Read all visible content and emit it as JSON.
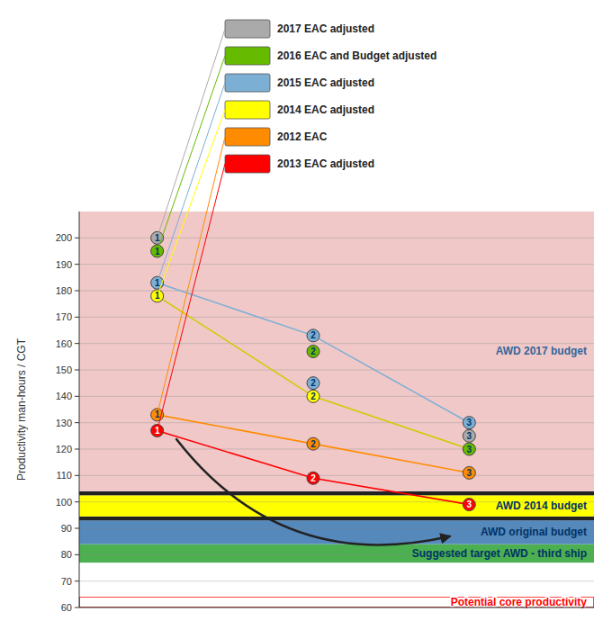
{
  "chart_data": {
    "type": "scatter",
    "ylabel": "Productivity man-hours / CGT",
    "xlim": [
      0.5,
      3.8
    ],
    "ylim": [
      60,
      210
    ],
    "yticks": [
      60,
      70,
      80,
      90,
      100,
      110,
      120,
      130,
      140,
      150,
      160,
      170,
      180,
      190,
      200
    ],
    "grid": true,
    "legend": "top",
    "tick_labels": "y",
    "marker": "circle",
    "series": [
      {
        "name": "2017 EAC adjusted",
        "color": "#aaaaaa",
        "x": [
          1,
          3
        ],
        "values": [
          200,
          125
        ]
      },
      {
        "name": "2016 EAC and Budget adjusted",
        "color": "#66BB00",
        "x": [
          1,
          2,
          3
        ],
        "values": [
          195,
          157,
          120
        ]
      },
      {
        "name": "2015 EAC adjusted",
        "color": "#7BAFD4",
        "x": [
          1,
          2,
          2,
          3
        ],
        "values": [
          183,
          163,
          145,
          130
        ]
      },
      {
        "name": "2014 EAC adjusted",
        "color": "#FFFF00",
        "x": [
          1,
          2
        ],
        "values": [
          178,
          140
        ]
      },
      {
        "name": "2012 EAC",
        "color": "#FF8C00",
        "x": [
          1,
          2,
          3
        ],
        "values": [
          133,
          122,
          111
        ]
      },
      {
        "name": "2013 EAC adjusted",
        "color": "#FF0000",
        "x": [
          1,
          2,
          3
        ],
        "values": [
          127,
          109,
          99
        ]
      },
      {
        "type": "line",
        "color": "#7BAFD4",
        "x": [
          1,
          2,
          3
        ],
        "values": [
          183,
          163,
          130
        ]
      },
      {
        "type": "line",
        "color": "#cccc00",
        "x": [
          1,
          2,
          3
        ],
        "values": [
          178,
          140,
          120
        ]
      },
      {
        "type": "line",
        "color": "#FF8C00",
        "x": [
          1,
          2,
          3
        ],
        "values": [
          133,
          122,
          111
        ]
      },
      {
        "type": "line",
        "color": "#FF0000",
        "x": [
          1,
          2,
          3
        ],
        "values": [
          127,
          109,
          99
        ]
      }
    ],
    "bands": [
      {
        "y": 60,
        "height": 4,
        "color": "#ffffff",
        "edge_color": "#ff0000",
        "label": "Potential core productivity",
        "label_color": "#ff0000"
      },
      {
        "y": 64,
        "height": 13,
        "color": "#ffffff"
      },
      {
        "y": 77,
        "height": 7,
        "color": "#4CAF50",
        "label": "Suggested target AWD - third ship",
        "label_color": "#003366"
      },
      {
        "y": 84,
        "height": 9,
        "color": "#5588BB",
        "label": "AWD original budget",
        "label_color": "#003366"
      },
      {
        "y": 93,
        "height": 1.5,
        "color": "#222222"
      },
      {
        "y": 94.5,
        "height": 8,
        "color": "#FFFF00",
        "label": "AWD 2014 budget",
        "label_color": "#003366"
      },
      {
        "y": 102.5,
        "height": 1.5,
        "color": "#222222"
      },
      {
        "y": 104,
        "height": 106,
        "color": "#f0c8c8",
        "label": "AWD 2017 budget",
        "label_color": "#336699"
      }
    ],
    "arrow": {
      "x_start": 1.12,
      "y_start": 124,
      "x_end": 2.88,
      "y_end": 87
    }
  }
}
